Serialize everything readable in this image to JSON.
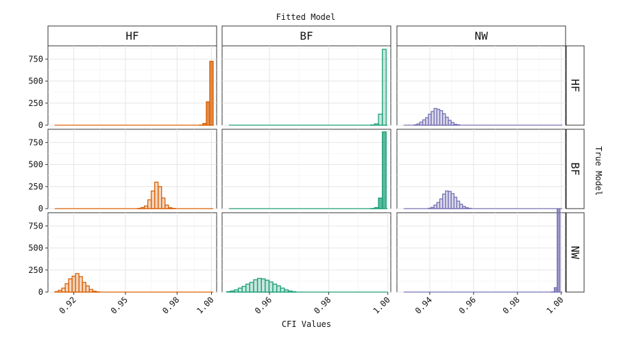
{
  "chart_data": {
    "type": "bar",
    "subtype": "histogram-facet-grid",
    "title": "Fitted Model",
    "xlabel": "CFI Values",
    "facet_row_title": "True Model",
    "col_facets": [
      "HF",
      "BF",
      "NW"
    ],
    "row_facets": [
      "HF",
      "BF",
      "NW"
    ],
    "ylim": [
      0,
      900
    ],
    "y_ticks": [
      0,
      250,
      500,
      750
    ],
    "y_tick_labels": [
      "0",
      "250",
      "500",
      "750"
    ],
    "colors": {
      "HF": "#d95f02",
      "BF": "#1b9e77",
      "NW": "#7570b3"
    },
    "grid": true,
    "columns": [
      {
        "name": "HF",
        "xlim": [
          0.905,
          1.003
        ],
        "x_ticks": [
          0.92,
          0.95,
          0.98,
          1.0
        ],
        "x_tick_labels": [
          "0.92",
          "0.95",
          "0.98",
          "1.00"
        ]
      },
      {
        "name": "BF",
        "xlim": [
          0.944,
          1.001
        ],
        "x_ticks": [
          0.96,
          0.98,
          1.0
        ],
        "x_tick_labels": [
          "0.96",
          "0.98",
          "1.00"
        ]
      },
      {
        "name": "NW",
        "xlim": [
          0.925,
          1.002
        ],
        "x_ticks": [
          0.94,
          0.96,
          0.98,
          1.0
        ],
        "x_tick_labels": [
          "0.94",
          "0.96",
          "0.98",
          "1.00"
        ]
      }
    ],
    "panels": [
      {
        "row": "HF",
        "col": "HF",
        "fill_strength": "strong",
        "bin_width": 0.002,
        "bins": [
          [
            0.99,
            0
          ],
          [
            0.992,
            0
          ],
          [
            0.994,
            2
          ],
          [
            0.996,
            20
          ],
          [
            0.998,
            265
          ],
          [
            1.0,
            725
          ]
        ]
      },
      {
        "row": "HF",
        "col": "BF",
        "fill_strength": "light",
        "bin_width": 0.0013,
        "bins": [
          [
            0.9936,
            0
          ],
          [
            0.9949,
            3
          ],
          [
            0.9962,
            15
          ],
          [
            0.9975,
            125
          ],
          [
            0.9988,
            860
          ]
        ]
      },
      {
        "row": "HF",
        "col": "NW",
        "fill_strength": "light",
        "bin_width": 0.0013,
        "bins": [
          [
            0.9335,
            5
          ],
          [
            0.9348,
            15
          ],
          [
            0.9361,
            35
          ],
          [
            0.9374,
            60
          ],
          [
            0.9387,
            85
          ],
          [
            0.94,
            125
          ],
          [
            0.9413,
            155
          ],
          [
            0.9426,
            190
          ],
          [
            0.9439,
            180
          ],
          [
            0.9452,
            165
          ],
          [
            0.9465,
            130
          ],
          [
            0.9478,
            90
          ],
          [
            0.9491,
            55
          ],
          [
            0.9504,
            30
          ],
          [
            0.9517,
            10
          ],
          [
            0.953,
            5
          ]
        ]
      },
      {
        "row": "BF",
        "col": "HF",
        "fill_strength": "light",
        "bin_width": 0.002,
        "bins": [
          [
            0.958,
            3
          ],
          [
            0.96,
            12
          ],
          [
            0.962,
            30
          ],
          [
            0.964,
            100
          ],
          [
            0.966,
            200
          ],
          [
            0.968,
            300
          ],
          [
            0.97,
            250
          ],
          [
            0.972,
            120
          ],
          [
            0.974,
            40
          ],
          [
            0.976,
            10
          ],
          [
            0.978,
            3
          ]
        ]
      },
      {
        "row": "BF",
        "col": "BF",
        "fill_strength": "strong",
        "bin_width": 0.0013,
        "bins": [
          [
            0.9936,
            0
          ],
          [
            0.9949,
            2
          ],
          [
            0.9962,
            12
          ],
          [
            0.9975,
            120
          ],
          [
            0.9988,
            870
          ]
        ]
      },
      {
        "row": "BF",
        "col": "NW",
        "fill_strength": "light",
        "bin_width": 0.0013,
        "bins": [
          [
            0.94,
            5
          ],
          [
            0.9413,
            15
          ],
          [
            0.9426,
            40
          ],
          [
            0.9439,
            70
          ],
          [
            0.9452,
            110
          ],
          [
            0.9465,
            165
          ],
          [
            0.9478,
            200
          ],
          [
            0.9491,
            195
          ],
          [
            0.9504,
            170
          ],
          [
            0.9517,
            130
          ],
          [
            0.953,
            85
          ],
          [
            0.9543,
            50
          ],
          [
            0.9556,
            25
          ],
          [
            0.9569,
            10
          ],
          [
            0.9582,
            4
          ]
        ]
      },
      {
        "row": "NW",
        "col": "HF",
        "fill_strength": "light",
        "bin_width": 0.002,
        "bins": [
          [
            0.91,
            5
          ],
          [
            0.912,
            20
          ],
          [
            0.914,
            45
          ],
          [
            0.916,
            95
          ],
          [
            0.918,
            150
          ],
          [
            0.92,
            180
          ],
          [
            0.922,
            210
          ],
          [
            0.924,
            175
          ],
          [
            0.926,
            110
          ],
          [
            0.928,
            70
          ],
          [
            0.93,
            30
          ],
          [
            0.932,
            10
          ],
          [
            0.934,
            3
          ]
        ]
      },
      {
        "row": "NW",
        "col": "BF",
        "fill_strength": "light",
        "bin_width": 0.0013,
        "bins": [
          [
            0.9462,
            5
          ],
          [
            0.9475,
            12
          ],
          [
            0.9488,
            25
          ],
          [
            0.9501,
            45
          ],
          [
            0.9514,
            65
          ],
          [
            0.9527,
            90
          ],
          [
            0.954,
            110
          ],
          [
            0.9553,
            140
          ],
          [
            0.9566,
            155
          ],
          [
            0.9579,
            150
          ],
          [
            0.9592,
            135
          ],
          [
            0.9605,
            115
          ],
          [
            0.9618,
            90
          ],
          [
            0.9631,
            70
          ],
          [
            0.9644,
            45
          ],
          [
            0.9657,
            25
          ],
          [
            0.967,
            12
          ],
          [
            0.9683,
            5
          ]
        ]
      },
      {
        "row": "NW",
        "col": "NW",
        "fill_strength": "strong",
        "bin_width": 0.0013,
        "bins": [
          [
            0.9962,
            2
          ],
          [
            0.9975,
            50
          ],
          [
            0.9988,
            945
          ]
        ]
      }
    ]
  }
}
